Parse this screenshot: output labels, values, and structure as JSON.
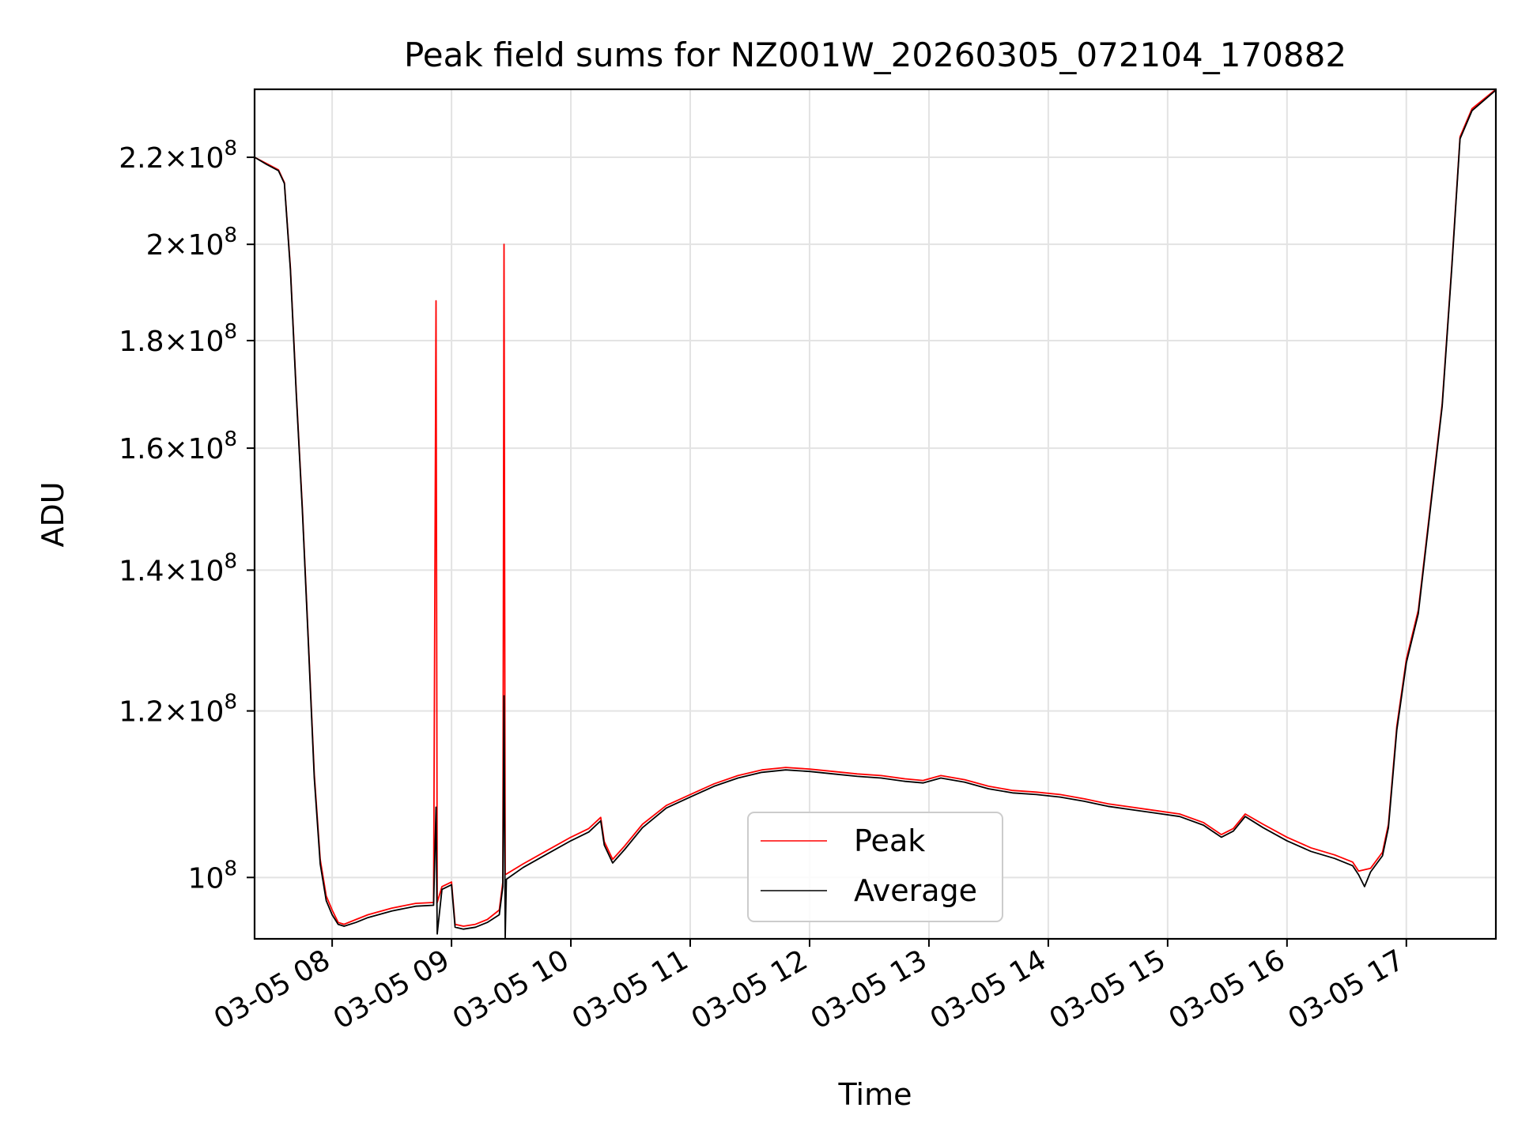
{
  "chart_data": {
    "type": "line",
    "title": "Peak field sums for NZ001W_20260305_072104_170882",
    "xlabel": "Time",
    "ylabel": "ADU",
    "yscale": "log",
    "grid": true,
    "legend_position": "lower-center",
    "xlim": [
      7.35,
      17.75
    ],
    "ylim": [
      93500000,
      237000000
    ],
    "x_units": "hours since 2026-03-05 00:00",
    "x_ticks": [
      {
        "value": 8,
        "label": "03-05 08"
      },
      {
        "value": 9,
        "label": "03-05 09"
      },
      {
        "value": 10,
        "label": "03-05 10"
      },
      {
        "value": 11,
        "label": "03-05 11"
      },
      {
        "value": 12,
        "label": "03-05 12"
      },
      {
        "value": 13,
        "label": "03-05 13"
      },
      {
        "value": 14,
        "label": "03-05 14"
      },
      {
        "value": 15,
        "label": "03-05 15"
      },
      {
        "value": 16,
        "label": "03-05 16"
      },
      {
        "value": 17,
        "label": "03-05 17"
      }
    ],
    "y_ticks": [
      {
        "value": 100000000,
        "mant": "",
        "exp": "8"
      },
      {
        "value": 120000000,
        "mant": "1.2",
        "exp": "8"
      },
      {
        "value": 140000000,
        "mant": "1.4",
        "exp": "8"
      },
      {
        "value": 160000000,
        "mant": "1.6",
        "exp": "8"
      },
      {
        "value": 180000000,
        "mant": "1.8",
        "exp": "8"
      },
      {
        "value": 200000000,
        "mant": "2",
        "exp": "8"
      },
      {
        "value": 220000000,
        "mant": "2.2",
        "exp": "8"
      }
    ],
    "series": [
      {
        "name": "Peak",
        "color": "#ff0000",
        "points": [
          [
            7.35,
            220000000
          ],
          [
            7.45,
            218500000
          ],
          [
            7.55,
            217000000
          ],
          [
            7.6,
            214000000
          ],
          [
            7.65,
            195000000
          ],
          [
            7.7,
            170000000
          ],
          [
            7.75,
            150000000
          ],
          [
            7.8,
            130000000
          ],
          [
            7.85,
            112000000
          ],
          [
            7.9,
            102000000
          ],
          [
            7.95,
            98000000
          ],
          [
            8.0,
            96500000
          ],
          [
            8.05,
            95200000
          ],
          [
            8.1,
            95000000
          ],
          [
            8.2,
            95500000
          ],
          [
            8.3,
            96000000
          ],
          [
            8.5,
            96700000
          ],
          [
            8.7,
            97200000
          ],
          [
            8.85,
            97300000
          ],
          [
            8.87,
            188000000
          ],
          [
            8.88,
            97300000
          ],
          [
            8.92,
            99000000
          ],
          [
            9.0,
            99500000
          ],
          [
            9.03,
            95000000
          ],
          [
            9.1,
            94800000
          ],
          [
            9.2,
            95000000
          ],
          [
            9.3,
            95500000
          ],
          [
            9.4,
            96500000
          ],
          [
            9.43,
            99500000
          ],
          [
            9.44,
            200000000
          ],
          [
            9.45,
            100300000
          ],
          [
            9.6,
            101500000
          ],
          [
            9.8,
            103000000
          ],
          [
            10.0,
            104500000
          ],
          [
            10.15,
            105500000
          ],
          [
            10.25,
            106800000
          ],
          [
            10.28,
            104000000
          ],
          [
            10.35,
            102000000
          ],
          [
            10.45,
            103500000
          ],
          [
            10.6,
            106000000
          ],
          [
            10.8,
            108200000
          ],
          [
            11.0,
            109500000
          ],
          [
            11.2,
            110800000
          ],
          [
            11.4,
            111800000
          ],
          [
            11.6,
            112500000
          ],
          [
            11.8,
            112800000
          ],
          [
            12.0,
            112600000
          ],
          [
            12.2,
            112300000
          ],
          [
            12.4,
            112000000
          ],
          [
            12.6,
            111800000
          ],
          [
            12.8,
            111400000
          ],
          [
            12.95,
            111200000
          ],
          [
            13.1,
            111800000
          ],
          [
            13.3,
            111300000
          ],
          [
            13.5,
            110500000
          ],
          [
            13.7,
            110000000
          ],
          [
            13.9,
            109800000
          ],
          [
            14.1,
            109500000
          ],
          [
            14.3,
            109000000
          ],
          [
            14.5,
            108400000
          ],
          [
            14.7,
            108000000
          ],
          [
            14.9,
            107600000
          ],
          [
            15.1,
            107200000
          ],
          [
            15.3,
            106200000
          ],
          [
            15.45,
            104800000
          ],
          [
            15.55,
            105500000
          ],
          [
            15.65,
            107200000
          ],
          [
            15.8,
            106000000
          ],
          [
            16.0,
            104500000
          ],
          [
            16.2,
            103300000
          ],
          [
            16.4,
            102500000
          ],
          [
            16.55,
            101700000
          ],
          [
            16.6,
            100700000
          ],
          [
            16.7,
            101000000
          ],
          [
            16.8,
            102800000
          ],
          [
            16.85,
            106000000
          ],
          [
            16.92,
            118000000
          ],
          [
            17.0,
            127000000
          ],
          [
            17.1,
            134000000
          ],
          [
            17.2,
            150000000
          ],
          [
            17.3,
            168000000
          ],
          [
            17.38,
            195000000
          ],
          [
            17.45,
            225000000
          ],
          [
            17.55,
            232000000
          ],
          [
            17.75,
            237000000
          ]
        ]
      },
      {
        "name": "Average",
        "color": "#000000",
        "points": [
          [
            7.35,
            220000000
          ],
          [
            7.45,
            218300000
          ],
          [
            7.55,
            216800000
          ],
          [
            7.6,
            213800000
          ],
          [
            7.65,
            194500000
          ],
          [
            7.7,
            169500000
          ],
          [
            7.75,
            149500000
          ],
          [
            7.8,
            129500000
          ],
          [
            7.85,
            111500000
          ],
          [
            7.9,
            101500000
          ],
          [
            7.95,
            97500000
          ],
          [
            8.0,
            96000000
          ],
          [
            8.05,
            95000000
          ],
          [
            8.1,
            94800000
          ],
          [
            8.2,
            95200000
          ],
          [
            8.3,
            95700000
          ],
          [
            8.5,
            96400000
          ],
          [
            8.7,
            96900000
          ],
          [
            8.85,
            97000000
          ],
          [
            8.87,
            108000000
          ],
          [
            8.88,
            94000000
          ],
          [
            8.92,
            98700000
          ],
          [
            9.0,
            99200000
          ],
          [
            9.03,
            94700000
          ],
          [
            9.1,
            94500000
          ],
          [
            9.2,
            94700000
          ],
          [
            9.3,
            95200000
          ],
          [
            9.4,
            96000000
          ],
          [
            9.43,
            99000000
          ],
          [
            9.44,
            122000000
          ],
          [
            9.45,
            93600000
          ],
          [
            9.46,
            99800000
          ],
          [
            9.6,
            101100000
          ],
          [
            9.8,
            102600000
          ],
          [
            10.0,
            104100000
          ],
          [
            10.15,
            105100000
          ],
          [
            10.25,
            106400000
          ],
          [
            10.28,
            103600000
          ],
          [
            10.35,
            101600000
          ],
          [
            10.45,
            103100000
          ],
          [
            10.6,
            105600000
          ],
          [
            10.8,
            107900000
          ],
          [
            11.0,
            109200000
          ],
          [
            11.2,
            110500000
          ],
          [
            11.4,
            111500000
          ],
          [
            11.6,
            112200000
          ],
          [
            11.8,
            112500000
          ],
          [
            12.0,
            112300000
          ],
          [
            12.2,
            112000000
          ],
          [
            12.4,
            111700000
          ],
          [
            12.6,
            111500000
          ],
          [
            12.8,
            111100000
          ],
          [
            12.95,
            110900000
          ],
          [
            13.1,
            111500000
          ],
          [
            13.3,
            111000000
          ],
          [
            13.5,
            110200000
          ],
          [
            13.7,
            109700000
          ],
          [
            13.9,
            109500000
          ],
          [
            14.1,
            109200000
          ],
          [
            14.3,
            108700000
          ],
          [
            14.5,
            108100000
          ],
          [
            14.7,
            107700000
          ],
          [
            14.9,
            107300000
          ],
          [
            15.1,
            106900000
          ],
          [
            15.3,
            105900000
          ],
          [
            15.45,
            104500000
          ],
          [
            15.55,
            105200000
          ],
          [
            15.65,
            106900000
          ],
          [
            15.8,
            105600000
          ],
          [
            16.0,
            104100000
          ],
          [
            16.2,
            102900000
          ],
          [
            16.4,
            102100000
          ],
          [
            16.55,
            101300000
          ],
          [
            16.6,
            100300000
          ],
          [
            16.65,
            99000000
          ],
          [
            16.7,
            100600000
          ],
          [
            16.8,
            102400000
          ],
          [
            16.85,
            105600000
          ],
          [
            16.92,
            117500000
          ],
          [
            17.0,
            126500000
          ],
          [
            17.1,
            133500000
          ],
          [
            17.2,
            149500000
          ],
          [
            17.3,
            167500000
          ],
          [
            17.38,
            194500000
          ],
          [
            17.45,
            224500000
          ],
          [
            17.55,
            231500000
          ],
          [
            17.75,
            236800000
          ]
        ]
      }
    ]
  }
}
